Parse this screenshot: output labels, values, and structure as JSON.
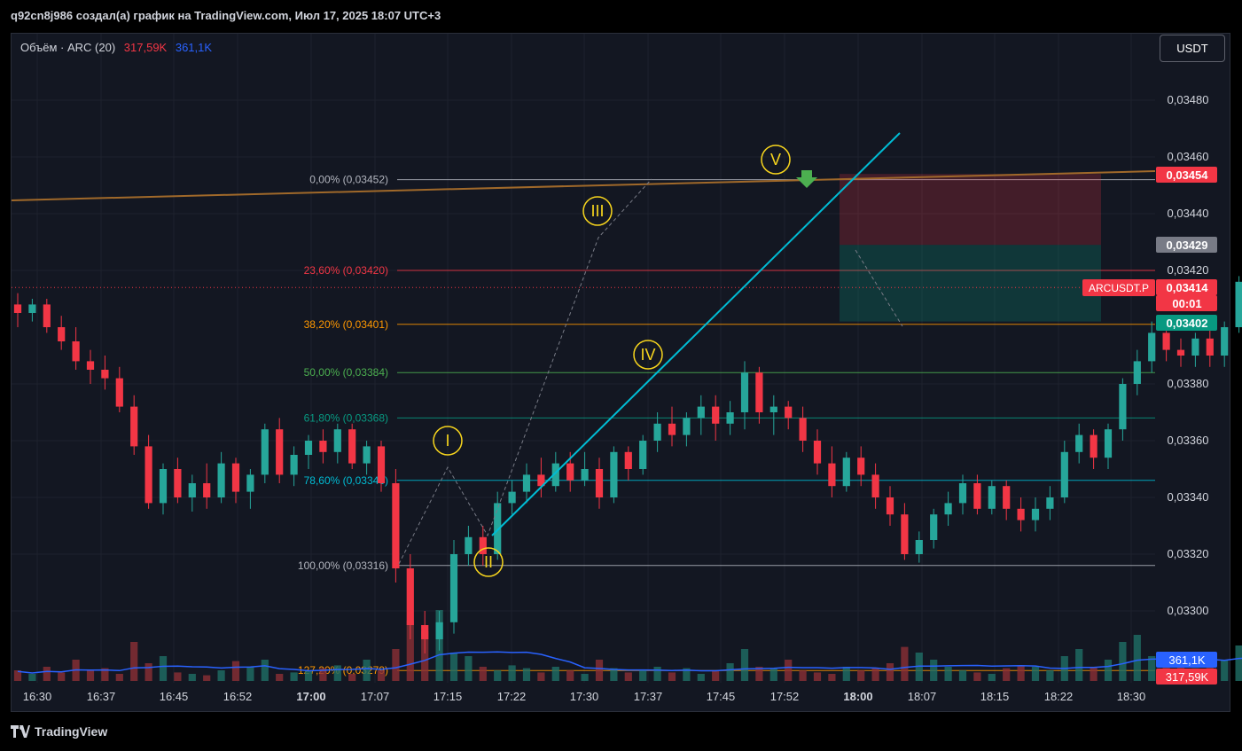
{
  "header": {
    "title": "q92cn8j986 создал(а) график на TradingView.com, Июл 17, 2025 18:07 UTC+3"
  },
  "legend": {
    "label": "Объём · ARC (20)",
    "vol": "317,59K",
    "ma": "361,1K"
  },
  "currency_button": "USDT",
  "footer": {
    "logo_text": "TradingView"
  },
  "colors": {
    "up": "#26a69a",
    "down": "#f23645",
    "background": "#131722",
    "wave_labels": "#f7d51d",
    "trendline": "#00bcd4",
    "resistance": "#a0692a"
  },
  "chart_data": {
    "type": "candlestick",
    "symbol": "ARCUSDT.P",
    "y_ticks": [
      "0,03480",
      "0,03460",
      "0,03440",
      "0,03420",
      "0,03380",
      "0,03360",
      "0,03340",
      "0,03320",
      "0,03300"
    ],
    "x_ticks": [
      {
        "label": "16:30",
        "bold": false
      },
      {
        "label": "16:37",
        "bold": false
      },
      {
        "label": "16:45",
        "bold": false
      },
      {
        "label": "16:52",
        "bold": false
      },
      {
        "label": "17:00",
        "bold": true
      },
      {
        "label": "17:07",
        "bold": false
      },
      {
        "label": "17:15",
        "bold": false
      },
      {
        "label": "17:22",
        "bold": false
      },
      {
        "label": "17:30",
        "bold": false
      },
      {
        "label": "17:37",
        "bold": false
      },
      {
        "label": "17:45",
        "bold": false
      },
      {
        "label": "17:52",
        "bold": false
      },
      {
        "label": "18:00",
        "bold": true
      },
      {
        "label": "18:07",
        "bold": false
      },
      {
        "label": "18:15",
        "bold": false
      },
      {
        "label": "18:22",
        "bold": false
      },
      {
        "label": "18:30",
        "bold": false
      }
    ],
    "fib_levels": [
      {
        "label": "0,00% (0,03452)",
        "price": 0.03452,
        "color": "#b2b5be"
      },
      {
        "label": "23,60% (0,03420)",
        "price": 0.0342,
        "color": "#f23645"
      },
      {
        "label": "38,20% (0,03401)",
        "price": 0.03401,
        "color": "#ff9800"
      },
      {
        "label": "50,00% (0,03384)",
        "price": 0.03384,
        "color": "#4caf50"
      },
      {
        "label": "61,80% (0,03368)",
        "price": 0.03368,
        "color": "#089981"
      },
      {
        "label": "78,60% (0,03346)",
        "price": 0.03346,
        "color": "#00bcd4"
      },
      {
        "label": "100,00% (0,03316)",
        "price": 0.03316,
        "color": "#b2b5be"
      },
      {
        "label": "127,20% (0,03279)",
        "price": 0.03279,
        "color": "#ff9800"
      }
    ],
    "wave_labels": [
      "I",
      "II",
      "III",
      "IV",
      "V"
    ],
    "price_labels": [
      {
        "text": "0,03454",
        "price": 0.03454,
        "bg": "#f23645"
      },
      {
        "text": "0,03429",
        "price": 0.03429,
        "bg": "#787b86"
      },
      {
        "text": "0,03414",
        "price": 0.03414,
        "bg": "#f23645"
      },
      {
        "text": "00:01",
        "price": 0.0341,
        "bg": "#f23645"
      },
      {
        "text": "0,03402",
        "price": 0.03402,
        "bg": "#089981"
      },
      {
        "text": "361,1K",
        "price": 0.03284,
        "bg": "#2962ff"
      },
      {
        "text": "317,59K",
        "price": 0.03278,
        "bg": "#f23645"
      }
    ],
    "symbol_tag": "ARCUSDT.P",
    "candles": [
      [
        0.03408,
        0.03412,
        0.034,
        0.03405
      ],
      [
        0.03405,
        0.0341,
        0.03402,
        0.03408
      ],
      [
        0.03408,
        0.0341,
        0.03398,
        0.034
      ],
      [
        0.034,
        0.03404,
        0.03392,
        0.03395
      ],
      [
        0.03395,
        0.034,
        0.03385,
        0.03388
      ],
      [
        0.03388,
        0.03392,
        0.0338,
        0.03385
      ],
      [
        0.03385,
        0.0339,
        0.03378,
        0.03382
      ],
      [
        0.03382,
        0.03386,
        0.0337,
        0.03372
      ],
      [
        0.03372,
        0.03376,
        0.03355,
        0.03358
      ],
      [
        0.03358,
        0.03362,
        0.03336,
        0.03338
      ],
      [
        0.03338,
        0.03352,
        0.03334,
        0.0335
      ],
      [
        0.0335,
        0.03354,
        0.03338,
        0.0334
      ],
      [
        0.0334,
        0.03348,
        0.03335,
        0.03345
      ],
      [
        0.03345,
        0.03352,
        0.03336,
        0.0334
      ],
      [
        0.0334,
        0.03356,
        0.03338,
        0.03352
      ],
      [
        0.03352,
        0.03354,
        0.03338,
        0.03342
      ],
      [
        0.03342,
        0.0335,
        0.03336,
        0.03348
      ],
      [
        0.03348,
        0.03366,
        0.03345,
        0.03364
      ],
      [
        0.03364,
        0.03368,
        0.03345,
        0.03348
      ],
      [
        0.03348,
        0.03358,
        0.03344,
        0.03355
      ],
      [
        0.03355,
        0.03362,
        0.0335,
        0.0336
      ],
      [
        0.0336,
        0.03364,
        0.03352,
        0.03356
      ],
      [
        0.03356,
        0.03366,
        0.03352,
        0.03364
      ],
      [
        0.03364,
        0.03366,
        0.0335,
        0.03352
      ],
      [
        0.03352,
        0.0336,
        0.03348,
        0.03358
      ],
      [
        0.03358,
        0.0336,
        0.03342,
        0.03345
      ],
      [
        0.03345,
        0.0335,
        0.0331,
        0.03315
      ],
      [
        0.03315,
        0.0332,
        0.0329,
        0.03295
      ],
      [
        0.03295,
        0.033,
        0.03285,
        0.0329
      ],
      [
        0.0329,
        0.033,
        0.03286,
        0.03296
      ],
      [
        0.03296,
        0.03325,
        0.03292,
        0.0332
      ],
      [
        0.0332,
        0.0333,
        0.03316,
        0.03326
      ],
      [
        0.03326,
        0.0333,
        0.03316,
        0.0332
      ],
      [
        0.0332,
        0.03342,
        0.03318,
        0.03338
      ],
      [
        0.03338,
        0.03346,
        0.03334,
        0.03342
      ],
      [
        0.03342,
        0.03352,
        0.03338,
        0.03348
      ],
      [
        0.03348,
        0.03354,
        0.0334,
        0.03344
      ],
      [
        0.03344,
        0.03356,
        0.03342,
        0.03352
      ],
      [
        0.03352,
        0.03356,
        0.03342,
        0.03346
      ],
      [
        0.03346,
        0.03356,
        0.03344,
        0.0335
      ],
      [
        0.0335,
        0.03354,
        0.03336,
        0.0334
      ],
      [
        0.0334,
        0.03358,
        0.03338,
        0.03356
      ],
      [
        0.03356,
        0.03358,
        0.03346,
        0.0335
      ],
      [
        0.0335,
        0.03362,
        0.03348,
        0.0336
      ],
      [
        0.0336,
        0.0337,
        0.03356,
        0.03366
      ],
      [
        0.03366,
        0.03372,
        0.03358,
        0.03362
      ],
      [
        0.03362,
        0.0337,
        0.03358,
        0.03368
      ],
      [
        0.03368,
        0.03376,
        0.03362,
        0.03372
      ],
      [
        0.03372,
        0.03376,
        0.0336,
        0.03366
      ],
      [
        0.03366,
        0.03374,
        0.03362,
        0.0337
      ],
      [
        0.0337,
        0.03388,
        0.03364,
        0.03384
      ],
      [
        0.03384,
        0.03386,
        0.03366,
        0.0337
      ],
      [
        0.0337,
        0.03376,
        0.03362,
        0.03372
      ],
      [
        0.03372,
        0.03374,
        0.03364,
        0.03368
      ],
      [
        0.03368,
        0.03372,
        0.03356,
        0.0336
      ],
      [
        0.0336,
        0.03364,
        0.03348,
        0.03352
      ],
      [
        0.03352,
        0.03358,
        0.0334,
        0.03344
      ],
      [
        0.03344,
        0.03356,
        0.03342,
        0.03354
      ],
      [
        0.03354,
        0.03358,
        0.03344,
        0.03348
      ],
      [
        0.03348,
        0.03352,
        0.03336,
        0.0334
      ],
      [
        0.0334,
        0.03344,
        0.0333,
        0.03334
      ],
      [
        0.03334,
        0.03338,
        0.03318,
        0.0332
      ],
      [
        0.0332,
        0.03328,
        0.03317,
        0.03325
      ],
      [
        0.03325,
        0.03336,
        0.03322,
        0.03334
      ],
      [
        0.03334,
        0.03342,
        0.0333,
        0.03338
      ],
      [
        0.03338,
        0.03348,
        0.03334,
        0.03345
      ],
      [
        0.03345,
        0.03348,
        0.03334,
        0.03336
      ],
      [
        0.03336,
        0.03346,
        0.03334,
        0.03344
      ],
      [
        0.03344,
        0.03346,
        0.03332,
        0.03336
      ],
      [
        0.03336,
        0.0334,
        0.03328,
        0.03332
      ],
      [
        0.03332,
        0.0334,
        0.03328,
        0.03336
      ],
      [
        0.03336,
        0.03344,
        0.03332,
        0.0334
      ],
      [
        0.0334,
        0.0336,
        0.03338,
        0.03356
      ],
      [
        0.03356,
        0.03366,
        0.03352,
        0.03362
      ],
      [
        0.03362,
        0.03364,
        0.0335,
        0.03354
      ],
      [
        0.03354,
        0.03366,
        0.0335,
        0.03364
      ],
      [
        0.03364,
        0.03382,
        0.0336,
        0.0338
      ],
      [
        0.0338,
        0.03392,
        0.03376,
        0.03388
      ],
      [
        0.03388,
        0.03402,
        0.03384,
        0.03398
      ],
      [
        0.03398,
        0.03404,
        0.03388,
        0.03392
      ],
      [
        0.03392,
        0.03396,
        0.03386,
        0.0339
      ],
      [
        0.0339,
        0.03398,
        0.03386,
        0.03396
      ],
      [
        0.03396,
        0.034,
        0.03386,
        0.0339
      ],
      [
        0.0339,
        0.03402,
        0.03386,
        0.034
      ],
      [
        0.034,
        0.03418,
        0.03398,
        0.03416
      ],
      [
        0.03416,
        0.03426,
        0.03412,
        0.03422
      ],
      [
        0.03422,
        0.03424,
        0.0341,
        0.03414
      ],
      [
        0.03414,
        0.03418,
        0.03404,
        0.03408
      ],
      [
        0.03408,
        0.03414,
        0.03402,
        0.03412
      ],
      [
        0.03412,
        0.03416,
        0.03402,
        0.03406
      ],
      [
        0.03406,
        0.0341,
        0.034,
        0.03404
      ],
      [
        0.03404,
        0.0341,
        0.034,
        0.03406
      ],
      [
        0.03406,
        0.03412,
        0.03402,
        0.03408
      ],
      [
        0.03408,
        0.0341,
        0.034,
        0.03404
      ],
      [
        0.03404,
        0.03412,
        0.03402,
        0.0341
      ],
      [
        0.0341,
        0.03424,
        0.03408,
        0.0342
      ],
      [
        0.0342,
        0.03422,
        0.03408,
        0.03412
      ],
      [
        0.03412,
        0.03416,
        0.03404,
        0.03406
      ],
      [
        0.03406,
        0.03422,
        0.03404,
        0.0342
      ],
      [
        0.0342,
        0.03428,
        0.03416,
        0.03426
      ],
      [
        0.03426,
        0.03432,
        0.0342,
        0.03428
      ],
      [
        0.03428,
        0.03434,
        0.03424,
        0.03432
      ],
      [
        0.03432,
        0.0344,
        0.03428,
        0.03436
      ],
      [
        0.03436,
        0.03446,
        0.03432,
        0.03444
      ],
      [
        0.03444,
        0.03448,
        0.03436,
        0.0344
      ],
      [
        0.0344,
        0.03446,
        0.03436,
        0.03444
      ],
      [
        0.03444,
        0.03452,
        0.03438,
        0.03442
      ],
      [
        0.03442,
        0.0345,
        0.03438,
        0.03448
      ],
      [
        0.03448,
        0.0345,
        0.03438,
        0.0344
      ],
      [
        0.0344,
        0.03442,
        0.03428,
        0.03432
      ],
      [
        0.03432,
        0.03434,
        0.03426,
        0.0343
      ],
      [
        0.0343,
        0.03432,
        0.03422,
        0.03424
      ],
      [
        0.03424,
        0.03426,
        0.03416,
        0.03418
      ],
      [
        0.03418,
        0.0342,
        0.03414,
        0.03417
      ],
      [
        0.03417,
        0.03428,
        0.03414,
        0.03426
      ],
      [
        0.03426,
        0.0345,
        0.03424,
        0.03444
      ],
      [
        0.03444,
        0.03448,
        0.0343,
        0.03434
      ],
      [
        0.03434,
        0.03438,
        0.03424,
        0.03428
      ],
      [
        0.03428,
        0.03446,
        0.03424,
        0.0344
      ],
      [
        0.0344,
        0.03442,
        0.0342,
        0.03424
      ],
      [
        0.03424,
        0.03426,
        0.03402,
        0.03406
      ],
      [
        0.03406,
        0.03414,
        0.034,
        0.03412
      ],
      [
        0.03412,
        0.0342,
        0.03408,
        0.03414
      ],
      [
        0.03414,
        0.03418,
        0.0341,
        0.03414
      ]
    ],
    "volumes": [
      0.15,
      0.1,
      0.2,
      0.12,
      0.3,
      0.15,
      0.18,
      0.1,
      0.55,
      0.25,
      0.35,
      0.12,
      0.1,
      0.08,
      0.15,
      0.28,
      0.2,
      0.3,
      0.1,
      0.12,
      0.15,
      0.18,
      0.22,
      0.1,
      0.3,
      0.15,
      0.45,
      0.85,
      0.7,
      1.0,
      0.4,
      0.35,
      0.2,
      0.15,
      0.22,
      0.18,
      0.12,
      0.2,
      0.15,
      0.1,
      0.3,
      0.18,
      0.12,
      0.15,
      0.2,
      0.12,
      0.18,
      0.1,
      0.15,
      0.25,
      0.45,
      0.2,
      0.18,
      0.3,
      0.15,
      0.12,
      0.1,
      0.2,
      0.15,
      0.18,
      0.25,
      0.48,
      0.4,
      0.3,
      0.2,
      0.15,
      0.12,
      0.1,
      0.18,
      0.22,
      0.2,
      0.15,
      0.35,
      0.45,
      0.2,
      0.3,
      0.55,
      0.65,
      0.35,
      0.25,
      0.2,
      0.18,
      0.25,
      0.3,
      0.5,
      0.38,
      0.45,
      0.28,
      0.22,
      0.2,
      0.18,
      0.15,
      0.2,
      0.22,
      0.18,
      0.3,
      0.2,
      0.15,
      0.28,
      0.22,
      0.18,
      0.2,
      0.25,
      0.45,
      0.3,
      0.25,
      0.2,
      0.35,
      0.28,
      0.15,
      0.12,
      0.2,
      0.18,
      0.15,
      0.22,
      0.28,
      0.35,
      0.4,
      0.25,
      0.3,
      0.22,
      0.2,
      0.28,
      0.3,
      0.25,
      0.2,
      0.18
    ]
  }
}
